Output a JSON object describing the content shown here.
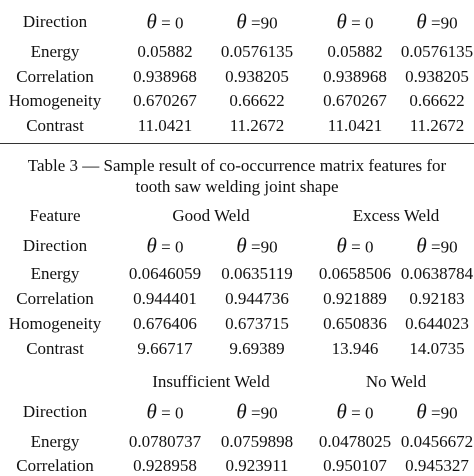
{
  "table_top": {
    "rows": [
      [
        "Direction",
        "θ = 0",
        "θ =90",
        "θ = 0",
        "θ =90"
      ],
      [
        "Energy",
        "0.05882",
        "0.0576135",
        "0.05882",
        "0.0576135"
      ],
      [
        "Correlation",
        "0.938968",
        "0.938205",
        "0.938968",
        "0.938205"
      ],
      [
        "Homogeneity",
        "0.670267",
        "0.66622",
        "0.670267",
        "0.66622"
      ],
      [
        "Contrast",
        "11.0421",
        "11.2672",
        "11.0421",
        "11.2672"
      ]
    ]
  },
  "caption": {
    "lines": [
      "Table 3 — Sample result of co-occurrence matrix features for",
      "tooth saw welding joint shape"
    ]
  },
  "table_3": {
    "sections": [
      {
        "header_label": "Feature",
        "groups": [
          "Good Weld",
          "Excess Weld"
        ],
        "rows": [
          [
            "Direction",
            "θ = 0",
            "θ =90",
            "θ = 0",
            "θ =90"
          ],
          [
            "Energy",
            "0.0646059",
            "0.0635119",
            "0.0658506",
            "0.0638784"
          ],
          [
            "Correlation",
            "0.944401",
            "0.944736",
            "0.921889",
            "0.92183"
          ],
          [
            "Homogeneity",
            "0.676406",
            "0.673715",
            "0.650836",
            "0.644023"
          ],
          [
            "Contrast",
            "9.66717",
            "9.69389",
            "13.946",
            "14.0735"
          ]
        ]
      },
      {
        "groups": [
          "Insufficient Weld",
          "No Weld"
        ],
        "rows": [
          [
            "Direction",
            "θ = 0",
            "θ =90",
            "θ = 0",
            "θ =90"
          ],
          [
            "Energy",
            "0.0780737",
            "0.0759898",
            "0.0478025",
            "0.0456672"
          ],
          [
            "Correlation",
            "0.928958",
            "0.923911",
            "0.950107",
            "0.945327"
          ]
        ]
      }
    ]
  }
}
